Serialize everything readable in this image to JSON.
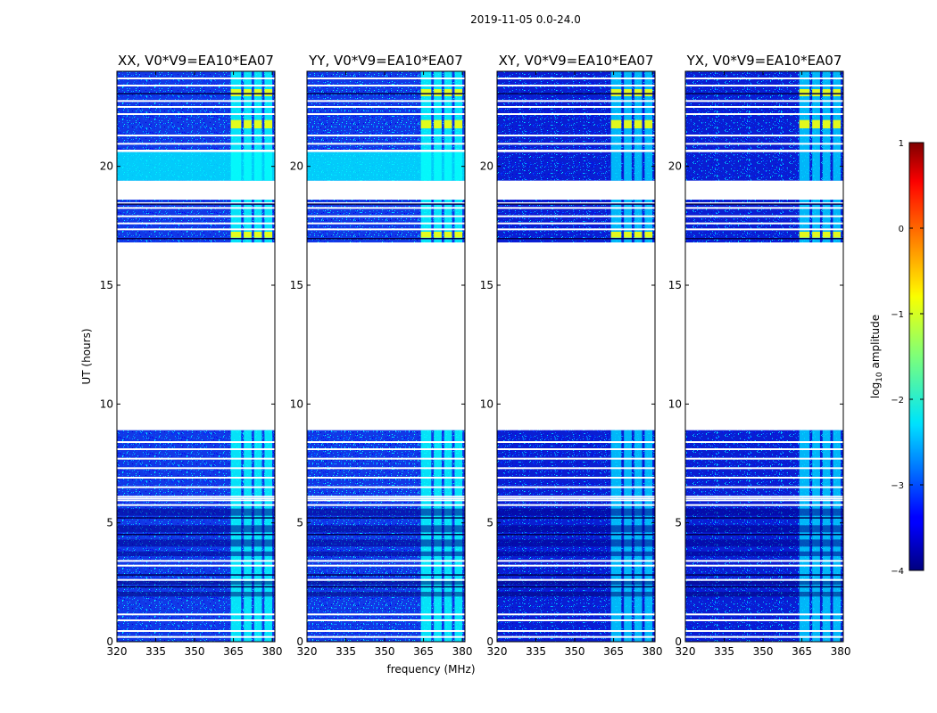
{
  "chart_data": {
    "type": "heatmap",
    "suptitle": "2019-11-05 0.0-24.0",
    "xlabel": "frequency (MHz)",
    "ylabel": "UT (hours)",
    "xlim": [
      320,
      381
    ],
    "ylim": [
      0,
      24
    ],
    "xticks": [
      "320",
      "335",
      "350",
      "365",
      "380"
    ],
    "yticks": [
      "0",
      "5",
      "10",
      "15",
      "20"
    ],
    "panels": [
      {
        "title": "XX, V0*V9=EA10*EA07",
        "cross": false
      },
      {
        "title": "YY, V0*V9=EA10*EA07",
        "cross": false
      },
      {
        "title": "XY, V0*V9=EA10*EA07",
        "cross": true
      },
      {
        "title": "YX, V0*V9=EA10*EA07",
        "cross": true
      }
    ],
    "colorbar": {
      "label": "log10 amplitude",
      "label_base": "log",
      "label_sub": "10",
      "label_rest": " amplitude",
      "min": -4,
      "max": 1,
      "ticks": [
        "1",
        "0",
        "−1",
        "−2",
        "−3",
        "−4"
      ],
      "colormap": "jet"
    },
    "data_ranges_ut_hours": [
      [
        0.0,
        6.0
      ],
      [
        6.05,
        8.9
      ],
      [
        16.8,
        18.6
      ],
      [
        19.4,
        20.6
      ],
      [
        20.7,
        24.0
      ]
    ],
    "rfi_band_mhz": [
      364,
      380
    ],
    "rfi_subbands_mhz": [
      [
        364,
        368
      ],
      [
        369,
        372
      ],
      [
        373,
        376
      ],
      [
        377,
        380
      ]
    ]
  }
}
